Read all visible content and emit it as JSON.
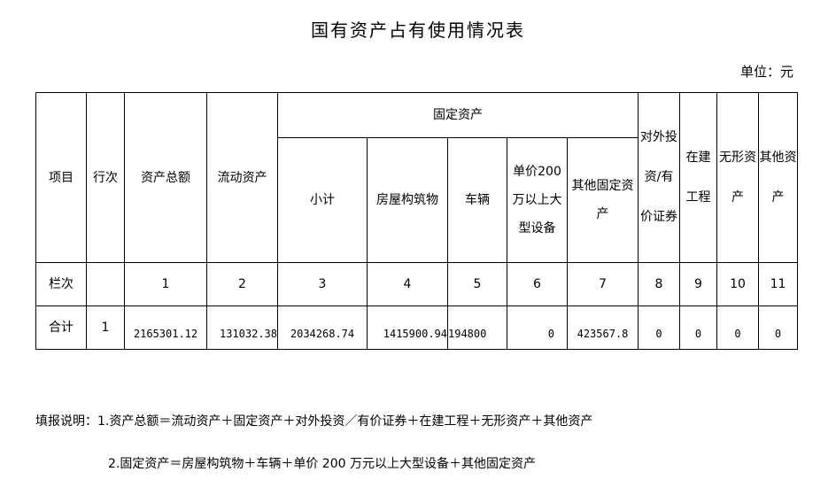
{
  "title": "国有资产占有使用情况表",
  "unit": "单位：元",
  "headers": {
    "item": "项目",
    "row_no": "行次",
    "total_assets": "资产总额",
    "current_assets": "流动资产",
    "fixed_assets": "固定资产",
    "subtotal": "小计",
    "buildings": "房屋构筑物",
    "vehicles": "车辆",
    "large_equipment": "单价200万以上大型设备",
    "other_fixed": "其他固定资产",
    "investment": "对外投资/有价证券",
    "construction": "在建工程",
    "intangible": "无形资产",
    "other_assets": "其他资产"
  },
  "column_row": {
    "label": "栏次",
    "row_no": "",
    "values": [
      "1",
      "2",
      "3",
      "4",
      "5",
      "6",
      "7",
      "8",
      "9",
      "10",
      "11"
    ]
  },
  "total_row": {
    "label": "合计",
    "row_no": "1",
    "values": [
      "2165301.12",
      "131032.38",
      "2034268.74",
      "1415900.94",
      "194800",
      "0",
      "423567.8",
      "0",
      "0",
      "0",
      "0"
    ]
  },
  "notes": [
    "填报说明：1.资产总额＝流动资产＋固定资产＋对外投资／有价证券＋在建工程＋无形资产＋其他资产",
    "2.固定资产＝房屋构筑物＋车辆＋单价 200 万元以上大型设备＋其他固定资产"
  ]
}
